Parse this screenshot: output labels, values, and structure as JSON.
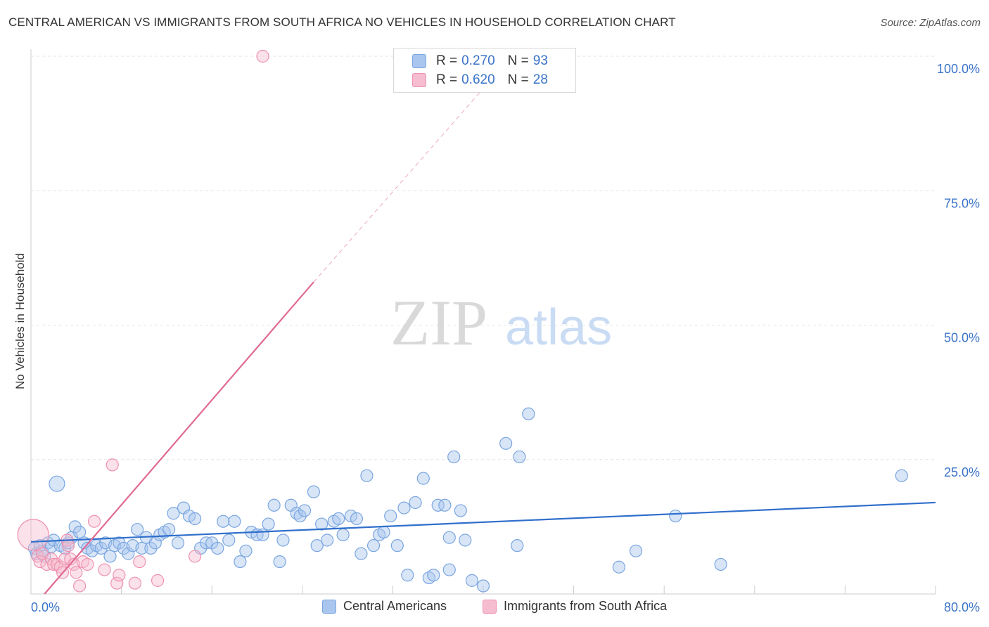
{
  "chart_data": {
    "type": "scatter",
    "title": "CENTRAL AMERICAN VS IMMIGRANTS FROM SOUTH AFRICA NO VEHICLES IN HOUSEHOLD CORRELATION CHART",
    "source": "Source: ZipAtlas.com",
    "xlabel": "",
    "ylabel": "No Vehicles in Household",
    "xlim": [
      0,
      80
    ],
    "ylim": [
      0,
      100
    ],
    "x_tick_labels": [
      "0.0%",
      "80.0%"
    ],
    "y_tick_labels": [
      "100.0%",
      "75.0%",
      "50.0%",
      "25.0%"
    ],
    "y_ticks": [
      100,
      75,
      50,
      25
    ],
    "grid": true,
    "watermark": "ZIPatlas",
    "legend": {
      "position": "top-center",
      "entries": [
        {
          "r_label": "R =",
          "r_value": "0.270",
          "n_label": "N =",
          "n_value": "93"
        },
        {
          "r_label": "R =",
          "r_value": "0.620",
          "n_label": "N =",
          "n_value": "28"
        }
      ]
    },
    "series": [
      {
        "name": "Central Americans",
        "color": "#a9c6ee",
        "stroke": "#7aa6e0",
        "line_color": "#2f6fcc",
        "trend": {
          "x0": 0,
          "y0": 9.7,
          "x1": 80,
          "y1": 17.0
        },
        "points": [
          [
            0.3,
            8.5
          ],
          [
            0.5,
            7.5
          ],
          [
            0.8,
            9.0
          ],
          [
            1.0,
            8.0
          ],
          [
            1.2,
            7.0
          ],
          [
            1.5,
            9.5
          ],
          [
            1.8,
            8.8
          ],
          [
            2.0,
            10.0
          ],
          [
            2.3,
            20.5
          ],
          [
            2.6,
            9.0
          ],
          [
            3.0,
            8.5
          ],
          [
            3.3,
            9.5
          ],
          [
            3.6,
            10.5
          ],
          [
            3.9,
            12.5
          ],
          [
            4.3,
            11.5
          ],
          [
            4.7,
            9.5
          ],
          [
            5.0,
            8.5
          ],
          [
            5.4,
            8.0
          ],
          [
            5.8,
            9.0
          ],
          [
            6.2,
            8.5
          ],
          [
            6.6,
            9.5
          ],
          [
            7.0,
            7.0
          ],
          [
            7.4,
            9.0
          ],
          [
            7.8,
            9.5
          ],
          [
            8.2,
            8.5
          ],
          [
            8.6,
            7.5
          ],
          [
            9.0,
            9.0
          ],
          [
            9.4,
            12.0
          ],
          [
            9.8,
            8.5
          ],
          [
            10.2,
            10.5
          ],
          [
            10.6,
            8.5
          ],
          [
            11.0,
            9.5
          ],
          [
            11.4,
            11.0
          ],
          [
            11.8,
            11.5
          ],
          [
            12.2,
            12.0
          ],
          [
            12.6,
            15.0
          ],
          [
            13.0,
            9.5
          ],
          [
            13.5,
            16.0
          ],
          [
            14.0,
            14.5
          ],
          [
            14.5,
            14.0
          ],
          [
            15.0,
            8.5
          ],
          [
            15.5,
            9.5
          ],
          [
            16.0,
            9.5
          ],
          [
            16.5,
            8.5
          ],
          [
            17.0,
            13.5
          ],
          [
            17.5,
            10.0
          ],
          [
            18.0,
            13.5
          ],
          [
            18.5,
            6.0
          ],
          [
            19.0,
            8.0
          ],
          [
            19.5,
            11.5
          ],
          [
            20.0,
            11.0
          ],
          [
            20.5,
            11.0
          ],
          [
            21.0,
            13.0
          ],
          [
            21.5,
            16.5
          ],
          [
            22.0,
            6.0
          ],
          [
            22.3,
            10.0
          ],
          [
            23.0,
            16.5
          ],
          [
            23.5,
            15.0
          ],
          [
            23.8,
            14.5
          ],
          [
            24.2,
            15.5
          ],
          [
            25.0,
            19.0
          ],
          [
            25.3,
            9.0
          ],
          [
            25.7,
            13.0
          ],
          [
            26.2,
            10.0
          ],
          [
            26.8,
            13.5
          ],
          [
            27.2,
            14.0
          ],
          [
            27.6,
            11.0
          ],
          [
            28.3,
            14.5
          ],
          [
            28.8,
            14.0
          ],
          [
            29.2,
            7.5
          ],
          [
            29.7,
            22.0
          ],
          [
            30.3,
            9.0
          ],
          [
            30.8,
            11.0
          ],
          [
            31.2,
            11.5
          ],
          [
            31.8,
            14.5
          ],
          [
            32.4,
            9.0
          ],
          [
            33.0,
            16.0
          ],
          [
            33.3,
            3.5
          ],
          [
            34.0,
            17.0
          ],
          [
            34.7,
            21.5
          ],
          [
            35.2,
            3.0
          ],
          [
            35.6,
            3.5
          ],
          [
            36.0,
            16.5
          ],
          [
            36.6,
            16.5
          ],
          [
            37.0,
            10.5
          ],
          [
            37.4,
            25.5
          ],
          [
            37.0,
            4.5
          ],
          [
            38.0,
            15.5
          ],
          [
            38.4,
            10.0
          ],
          [
            39.0,
            2.5
          ],
          [
            40.0,
            1.5
          ],
          [
            42.0,
            28.0
          ],
          [
            43.0,
            9.0
          ],
          [
            43.2,
            25.5
          ],
          [
            44.0,
            33.5
          ],
          [
            52.0,
            5.0
          ],
          [
            53.5,
            8.0
          ],
          [
            57.0,
            14.5
          ],
          [
            61.0,
            5.5
          ],
          [
            77.0,
            22.0
          ]
        ]
      },
      {
        "name": "Immigrants from South Africa",
        "color": "#f6bccf",
        "stroke": "#ee92b0",
        "line_color": "#e06a95",
        "trend": {
          "x0": 1.2,
          "y0": 0,
          "x1": 25.0,
          "y1": 58.0
        },
        "trend_dashed": {
          "x0": 25.0,
          "y0": 58.0,
          "x1": 40.0,
          "y1": 94.0
        },
        "points": [
          [
            0.2,
            11.0
          ],
          [
            0.6,
            7.0
          ],
          [
            0.8,
            6.0
          ],
          [
            1.0,
            7.5
          ],
          [
            1.4,
            5.5
          ],
          [
            1.8,
            6.5
          ],
          [
            2.0,
            5.5
          ],
          [
            2.3,
            5.5
          ],
          [
            2.6,
            5.0
          ],
          [
            2.8,
            4.0
          ],
          [
            3.0,
            6.5
          ],
          [
            3.2,
            10.0
          ],
          [
            3.3,
            9.0
          ],
          [
            3.5,
            6.5
          ],
          [
            3.8,
            5.5
          ],
          [
            4.0,
            4.0
          ],
          [
            4.3,
            1.5
          ],
          [
            4.6,
            6.0
          ],
          [
            5.0,
            5.5
          ],
          [
            5.6,
            13.5
          ],
          [
            6.5,
            4.5
          ],
          [
            7.2,
            24.0
          ],
          [
            7.6,
            2.0
          ],
          [
            7.8,
            3.5
          ],
          [
            9.2,
            2.0
          ],
          [
            9.6,
            6.0
          ],
          [
            11.2,
            2.5
          ],
          [
            14.5,
            7.0
          ],
          [
            20.5,
            100.0
          ]
        ]
      }
    ]
  }
}
